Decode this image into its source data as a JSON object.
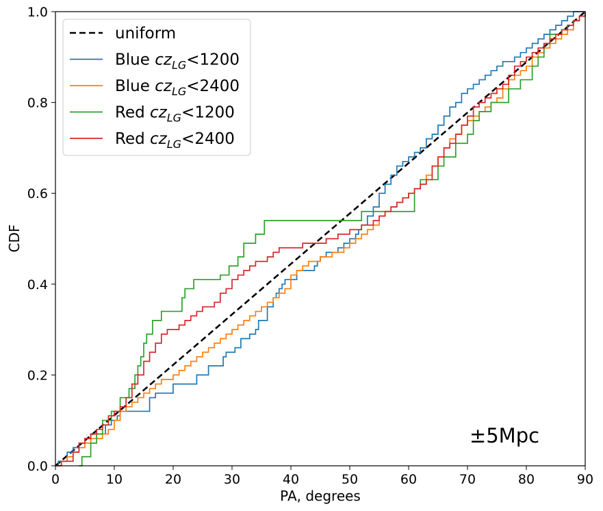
{
  "chart_data": {
    "type": "line",
    "xlabel": "PA, degrees",
    "ylabel": "CDF",
    "xlim": [
      0,
      90
    ],
    "ylim": [
      0.0,
      1.0
    ],
    "xticks": [
      0,
      10,
      20,
      30,
      40,
      50,
      60,
      70,
      80,
      90
    ],
    "xtick_labels": [
      "0",
      "10",
      "20",
      "30",
      "40",
      "50",
      "60",
      "70",
      "80",
      "90"
    ],
    "yticks": [
      0.0,
      0.2,
      0.4,
      0.6,
      0.8,
      1.0
    ],
    "ytick_labels": [
      "0.0",
      "0.2",
      "0.4",
      "0.6",
      "0.8",
      "1.0"
    ],
    "grid": false,
    "legend_position": "top-left",
    "annotation": "±5Mpc",
    "series": [
      {
        "name": "uniform",
        "legend_prefix": "uniform",
        "legend_sub": "",
        "legend_suffix": "",
        "color": "#000000",
        "dashed": true,
        "x": [
          0,
          90
        ],
        "y": [
          0.0,
          1.0
        ]
      },
      {
        "name": "Blue czLG<1200",
        "legend_prefix": "Blue cz",
        "legend_sub": "LG",
        "legend_suffix": "<1200",
        "color": "#1f77b4",
        "dashed": false,
        "x": [
          0,
          0.5,
          2,
          3,
          4,
          5,
          6,
          8.5,
          9.5,
          10.5,
          11,
          12.5,
          16,
          17,
          20,
          24,
          26,
          28.5,
          29,
          30.5,
          31.5,
          33,
          34,
          34.5,
          36,
          37,
          37.5,
          38,
          38.5,
          39,
          41,
          42,
          44,
          44.5,
          45,
          46,
          47,
          48,
          49,
          50,
          51,
          51.5,
          52,
          53,
          54,
          55,
          56,
          57,
          58,
          59,
          60,
          61,
          62,
          63,
          64,
          65,
          66,
          67,
          68,
          69,
          70,
          71,
          72,
          73,
          74,
          75,
          76,
          77,
          78,
          79,
          80,
          81,
          82,
          83,
          84,
          85,
          86,
          87,
          88,
          89,
          90
        ],
        "y": [
          0.0,
          0.01,
          0.03,
          0.04,
          0.05,
          0.06,
          0.07,
          0.09,
          0.1,
          0.11,
          0.12,
          0.12,
          0.15,
          0.16,
          0.18,
          0.2,
          0.22,
          0.24,
          0.25,
          0.26,
          0.28,
          0.29,
          0.3,
          0.32,
          0.35,
          0.37,
          0.38,
          0.39,
          0.4,
          0.41,
          0.43,
          0.43,
          0.44,
          0.45,
          0.46,
          0.47,
          0.47,
          0.48,
          0.49,
          0.5,
          0.51,
          0.52,
          0.53,
          0.55,
          0.57,
          0.6,
          0.62,
          0.64,
          0.66,
          0.67,
          0.68,
          0.69,
          0.7,
          0.72,
          0.73,
          0.75,
          0.77,
          0.79,
          0.8,
          0.82,
          0.83,
          0.84,
          0.85,
          0.86,
          0.87,
          0.88,
          0.89,
          0.89,
          0.9,
          0.91,
          0.92,
          0.93,
          0.94,
          0.95,
          0.96,
          0.97,
          0.98,
          0.99,
          1.0,
          1.0,
          1.0
        ]
      },
      {
        "name": "Blue czLG<2400",
        "legend_prefix": "Blue cz",
        "legend_sub": "LG",
        "legend_suffix": "<2400",
        "color": "#ff7f0e",
        "dashed": false,
        "x": [
          0,
          1,
          2,
          3,
          4,
          5,
          6,
          7,
          8,
          9,
          10,
          11,
          12,
          13,
          14,
          15,
          16,
          17,
          18,
          19,
          20,
          21,
          22,
          23,
          24,
          25,
          26,
          27,
          28,
          29,
          30,
          31,
          32,
          33,
          34,
          35,
          36,
          37,
          38,
          39,
          40,
          41,
          42,
          43,
          44,
          45,
          46,
          47,
          48,
          49,
          50,
          51,
          52,
          53,
          54,
          55,
          56,
          57,
          58,
          59,
          60,
          61,
          62,
          63,
          64,
          65,
          66,
          67,
          68,
          69,
          70,
          71,
          72,
          73,
          74,
          75,
          76,
          77,
          78,
          79,
          80,
          81,
          82,
          83,
          84,
          85,
          86,
          87,
          88,
          89,
          90
        ],
        "y": [
          0.0,
          0.01,
          0.02,
          0.03,
          0.04,
          0.05,
          0.06,
          0.06,
          0.07,
          0.08,
          0.1,
          0.12,
          0.13,
          0.14,
          0.15,
          0.16,
          0.17,
          0.18,
          0.19,
          0.19,
          0.2,
          0.21,
          0.22,
          0.23,
          0.24,
          0.25,
          0.26,
          0.27,
          0.28,
          0.29,
          0.3,
          0.31,
          0.32,
          0.33,
          0.34,
          0.35,
          0.36,
          0.37,
          0.38,
          0.39,
          0.42,
          0.43,
          0.44,
          0.45,
          0.45,
          0.46,
          0.46,
          0.47,
          0.47,
          0.48,
          0.49,
          0.5,
          0.51,
          0.52,
          0.53,
          0.55,
          0.56,
          0.57,
          0.58,
          0.59,
          0.6,
          0.61,
          0.62,
          0.64,
          0.66,
          0.68,
          0.7,
          0.72,
          0.73,
          0.75,
          0.76,
          0.77,
          0.78,
          0.79,
          0.8,
          0.81,
          0.83,
          0.85,
          0.86,
          0.87,
          0.88,
          0.9,
          0.91,
          0.92,
          0.93,
          0.94,
          0.95,
          0.96,
          0.98,
          0.99,
          1.0
        ]
      },
      {
        "name": "Red czLG<1200",
        "legend_prefix": "Red cz",
        "legend_sub": "LG",
        "legend_suffix": "<1200",
        "color": "#2ca02c",
        "dashed": false,
        "x": [
          4,
          4.5,
          6,
          7,
          8,
          9.5,
          11,
          12.5,
          13.5,
          14,
          14.5,
          15,
          15.5,
          16.5,
          18,
          20,
          21.5,
          22,
          23.5,
          26,
          28,
          29.5,
          31,
          32,
          34,
          35.5,
          38,
          40,
          45,
          50,
          52,
          55,
          61,
          62,
          65,
          66,
          68,
          70,
          71,
          72,
          74,
          75,
          77,
          79,
          80,
          81,
          82,
          83,
          84,
          85,
          86,
          87,
          88,
          89,
          90
        ],
        "y": [
          0.0,
          0.02,
          0.05,
          0.07,
          0.1,
          0.12,
          0.15,
          0.17,
          0.2,
          0.22,
          0.24,
          0.27,
          0.29,
          0.32,
          0.34,
          0.34,
          0.37,
          0.39,
          0.41,
          0.41,
          0.42,
          0.44,
          0.46,
          0.49,
          0.51,
          0.54,
          0.54,
          0.54,
          0.54,
          0.54,
          0.56,
          0.56,
          0.61,
          0.63,
          0.66,
          0.68,
          0.71,
          0.73,
          0.76,
          0.78,
          0.8,
          0.8,
          0.83,
          0.85,
          0.85,
          0.88,
          0.9,
          0.93,
          0.95,
          0.95,
          0.96,
          0.97,
          0.98,
          0.99,
          1.0
        ]
      },
      {
        "name": "Red czLG<2400",
        "legend_prefix": "Red cz",
        "legend_sub": "LG",
        "legend_suffix": "<2400",
        "color": "#d62728",
        "dashed": false,
        "x": [
          0,
          1,
          3,
          4,
          5,
          6,
          7,
          8,
          9,
          10,
          11,
          12,
          13,
          14,
          15,
          16,
          17,
          18,
          19,
          20,
          21,
          22,
          23,
          24,
          25,
          26,
          27,
          28,
          29,
          30,
          31,
          32,
          33,
          34,
          35,
          36,
          37,
          38,
          39,
          40,
          42,
          44,
          46,
          48,
          50,
          52,
          54,
          55,
          56,
          57,
          58,
          59,
          60,
          61,
          62,
          63,
          64,
          65,
          66,
          67,
          68,
          69,
          70,
          71,
          72,
          73,
          74,
          75,
          76,
          77,
          78,
          79,
          80,
          81,
          82,
          83,
          84,
          85,
          86,
          87,
          88,
          89,
          90
        ],
        "y": [
          0.0,
          0.01,
          0.03,
          0.05,
          0.06,
          0.07,
          0.08,
          0.09,
          0.11,
          0.12,
          0.13,
          0.15,
          0.18,
          0.2,
          0.23,
          0.25,
          0.27,
          0.29,
          0.3,
          0.3,
          0.31,
          0.32,
          0.33,
          0.34,
          0.35,
          0.35,
          0.36,
          0.38,
          0.39,
          0.41,
          0.42,
          0.43,
          0.44,
          0.45,
          0.45,
          0.46,
          0.47,
          0.48,
          0.48,
          0.48,
          0.49,
          0.49,
          0.5,
          0.51,
          0.52,
          0.53,
          0.54,
          0.55,
          0.56,
          0.57,
          0.58,
          0.59,
          0.6,
          0.61,
          0.62,
          0.63,
          0.66,
          0.68,
          0.7,
          0.71,
          0.73,
          0.75,
          0.77,
          0.79,
          0.8,
          0.81,
          0.82,
          0.83,
          0.84,
          0.86,
          0.88,
          0.89,
          0.9,
          0.91,
          0.92,
          0.93,
          0.94,
          0.95,
          0.96,
          0.97,
          0.98,
          0.99,
          1.0
        ]
      }
    ]
  }
}
